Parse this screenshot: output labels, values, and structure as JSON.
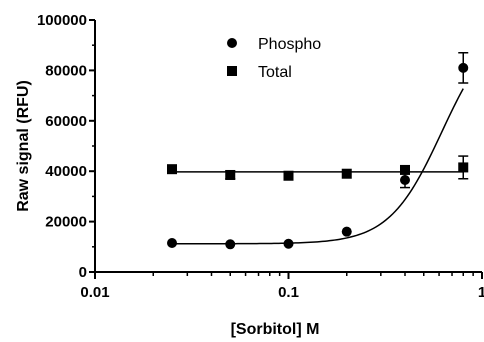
{
  "chart_data": {
    "type": "scatter",
    "title": "",
    "xlabel": "[Sorbitol] M",
    "ylabel": "Raw signal (RFU)",
    "xscale": "log",
    "xlim": [
      0.01,
      1
    ],
    "ylim": [
      0,
      100000
    ],
    "x_ticks": [
      0.01,
      0.1,
      1
    ],
    "x_tick_labels": [
      "0.01",
      "0.1",
      "1"
    ],
    "y_ticks": [
      0,
      20000,
      40000,
      60000,
      80000,
      100000
    ],
    "y_tick_labels": [
      "0",
      "20000",
      "40000",
      "60000",
      "80000",
      "100000"
    ],
    "grid": false,
    "legend_position": "top-center",
    "series": [
      {
        "name": "Phospho",
        "marker": "circle",
        "fit": "sigmoidal",
        "x": [
          0.025,
          0.05,
          0.1,
          0.2,
          0.4,
          0.8
        ],
        "y": [
          11500,
          11000,
          11200,
          16000,
          36500,
          81000
        ],
        "error": [
          0,
          0,
          0,
          0,
          3000,
          6000
        ]
      },
      {
        "name": "Total",
        "marker": "square",
        "fit": "flat",
        "x": [
          0.025,
          0.05,
          0.1,
          0.2,
          0.4,
          0.8
        ],
        "y": [
          40800,
          38500,
          38200,
          39000,
          40500,
          41500
        ],
        "error": [
          0,
          1500,
          0,
          0,
          0,
          4500
        ]
      }
    ]
  }
}
